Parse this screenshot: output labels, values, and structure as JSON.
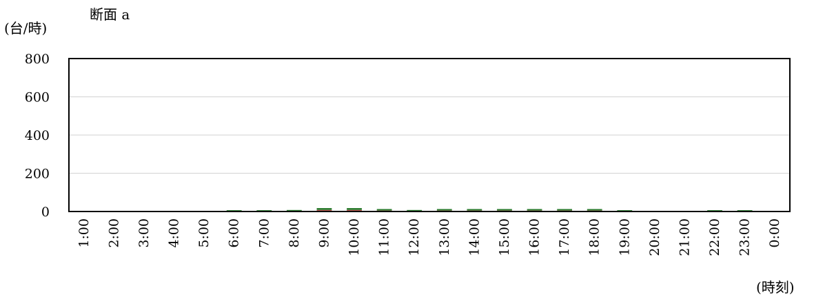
{
  "chart_data": {
    "type": "bar",
    "stacked": true,
    "title": "断面 a",
    "ylabel": "(台/時)",
    "xlabel": "(時刻)",
    "ylim": [
      0,
      800
    ],
    "yticks": [
      "0",
      "200",
      "400",
      "600",
      "800"
    ],
    "grid": true,
    "categories": [
      "1:00",
      "2:00",
      "3:00",
      "4:00",
      "5:00",
      "6:00",
      "7:00",
      "8:00",
      "9:00",
      "10:00",
      "11:00",
      "12:00",
      "13:00",
      "14:00",
      "15:00",
      "16:00",
      "17:00",
      "18:00",
      "19:00",
      "20:00",
      "21:00",
      "22:00",
      "23:00",
      "0:00"
    ],
    "series": [
      {
        "color": "#c0504d",
        "values": [
          0,
          0,
          0,
          0,
          0,
          2,
          2,
          3,
          8,
          8,
          5,
          3,
          5,
          5,
          5,
          5,
          5,
          5,
          2,
          0,
          0,
          2,
          2,
          0
        ]
      },
      {
        "color": "#2e7d32",
        "values": [
          0,
          0,
          0,
          0,
          0,
          5,
          5,
          5,
          10,
          10,
          8,
          5,
          8,
          8,
          8,
          8,
          8,
          8,
          5,
          0,
          0,
          5,
          5,
          0
        ]
      }
    ]
  }
}
